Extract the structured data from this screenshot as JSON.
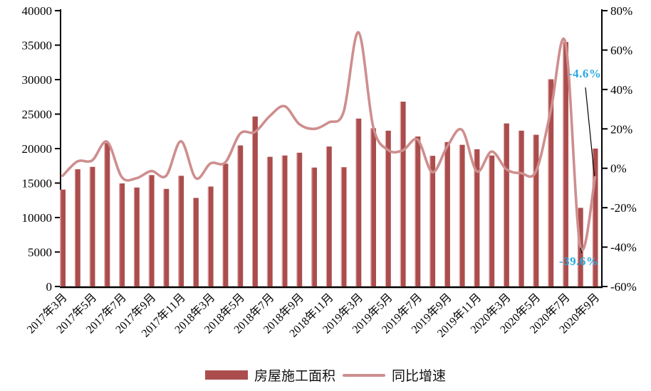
{
  "chart_data": {
    "type": "bar",
    "subtype": "bar+line dual-axis combo",
    "title": "",
    "grid": false,
    "background": "#ffffff",
    "categories": [
      "2017年3月",
      "2017年4月",
      "2017年5月",
      "2017年6月",
      "2017年7月",
      "2017年8月",
      "2017年9月",
      "2017年10月",
      "2017年11月",
      "2017年12月",
      "2018年3月",
      "2018年4月",
      "2018年5月",
      "2018年6月",
      "2018年7月",
      "2018年8月",
      "2018年9月",
      "2018年10月",
      "2018年11月",
      "2018年12月",
      "2019年3月",
      "2019年4月",
      "2019年5月",
      "2019年6月",
      "2019年7月",
      "2019年8月",
      "2019年9月",
      "2019年10月",
      "2019年11月",
      "2019年12月",
      "2020年3月",
      "2020年4月",
      "2020年5月",
      "2020年6月",
      "2020年7月",
      "2020年8月",
      "2020年9月"
    ],
    "x_axis": {
      "visible_tick_labels": [
        "2017年3月",
        "2017年5月",
        "2017年7月",
        "2017年9月",
        "2017年11月",
        "2018年3月",
        "2018年5月",
        "2018年7月",
        "2018年9月",
        "2018年11月",
        "2019年3月",
        "2019年5月",
        "2019年7月",
        "2019年9月",
        "2019年11月",
        "2020年3月",
        "2020年5月",
        "2020年7月",
        "2020年9月"
      ],
      "label_rotation_deg": 45,
      "labels_every_n_bars": 2
    },
    "y_axis_left": {
      "min": 0,
      "max": 40000,
      "step": 5000,
      "tick_labels": [
        "0",
        "5000",
        "10000",
        "15000",
        "20000",
        "25000",
        "30000",
        "35000",
        "40000"
      ]
    },
    "y_axis_right": {
      "min": -60,
      "max": 80,
      "step": 20,
      "tick_labels": [
        "-60%",
        "-40%",
        "-20%",
        "0%",
        "20%",
        "40%",
        "60%",
        "80%"
      ]
    },
    "series": [
      {
        "name": "房屋施工面积",
        "type": "bar",
        "axis": "left",
        "color": "#AC4D4D",
        "edge_highlight_color": "#DCA8A8",
        "values": [
          14050,
          17000,
          17350,
          20800,
          14950,
          14350,
          16150,
          14150,
          16050,
          12850,
          14500,
          17800,
          20450,
          24650,
          18800,
          19000,
          19400,
          17250,
          20300,
          17300,
          24350,
          22950,
          22600,
          26800,
          21750,
          18950,
          20950,
          20550,
          19900,
          19000,
          23650,
          22600,
          22000,
          30050,
          35450,
          11400,
          20000
        ]
      },
      {
        "name": "同比增速",
        "type": "line",
        "axis": "right",
        "color": "#CE8E8E",
        "values_percent": [
          -3.8,
          3.5,
          4.0,
          13.5,
          -4.5,
          -5.0,
          -1.4,
          -3.8,
          13.7,
          -5.0,
          2.5,
          3.0,
          17.6,
          18.4,
          26.5,
          31.5,
          22.4,
          20.0,
          23.3,
          28.7,
          69.0,
          21.0,
          9.3,
          9.1,
          14.5,
          -2.0,
          11.0,
          19.5,
          -1.5,
          8.5,
          -0.5,
          -2.5,
          -1.6,
          29.0,
          63.5,
          -39.6,
          -4.6
        ]
      }
    ],
    "annotations": [
      {
        "text": "-4.6%",
        "color": "#29A9E0",
        "points_to_category": "2020年9月",
        "points_to_series": "同比增速"
      },
      {
        "text": "-39.6%",
        "color": "#29A9E0",
        "points_to_category": "2020年8月",
        "points_to_series": "同比增速"
      }
    ],
    "legend": {
      "position": "bottom-center",
      "items": [
        {
          "label": "房屋施工面积",
          "swatch": "bar",
          "color": "#AC4D4D"
        },
        {
          "label": "同比增速",
          "swatch": "line",
          "color": "#CE8E8E"
        }
      ]
    }
  }
}
